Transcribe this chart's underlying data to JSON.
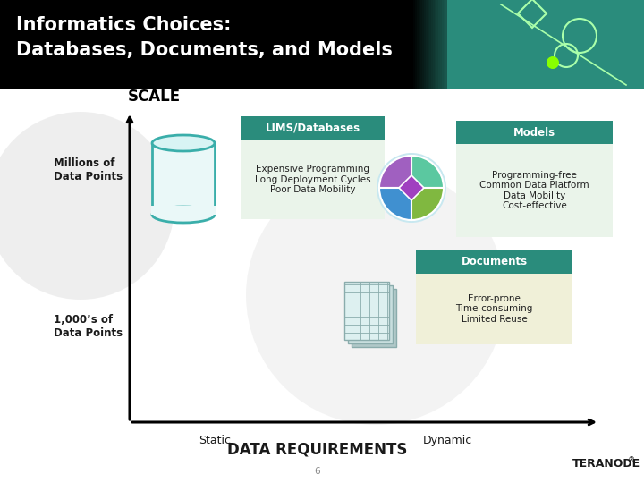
{
  "title_line1": "Informatics Choices:",
  "title_line2": "Databases, Documents, and Models",
  "scale_label": "SCALE",
  "y_label_top": "Millions of\nData Points",
  "y_label_bottom": "1,000’s of\nData Points",
  "x_label_left": "Static",
  "x_label_right": "Dynamic",
  "bottom_label": "DATA REQUIREMENTS",
  "lims_title": "LIMS/Databases",
  "lims_text": "Expensive Programming\nLong Deployment Cycles\nPoor Data Mobility",
  "models_title": "Models",
  "models_text": "Programming-free\nCommon Data Platform\nData Mobility\nCost-effective",
  "docs_title": "Documents",
  "docs_text": "Error-prone\nTime-consuming\nLimited Reuse",
  "page_num": "6",
  "teranode_text": "TERANODE",
  "header_black": "#000000",
  "header_teal": "#2a8c7c",
  "box_title_bg": "#2a8c7c",
  "lims_body_bg": "#eaf4ea",
  "models_body_bg": "#eaf4ea",
  "docs_body_bg": "#f0f0d8",
  "main_bg": "#ffffff",
  "cyl_fill": "#eaf8f8",
  "cyl_edge": "#3aaeaa",
  "axis_color": "#000000",
  "text_dark": "#1a1a1a",
  "text_gray": "#555555",
  "box_text_color": "#222222",
  "shapes_color": "#aaffaa",
  "pie_colors": [
    "#5bc8a0",
    "#a060c0",
    "#4090d0",
    "#80b840"
  ],
  "pie_center_color": "#a040c0",
  "watermark_color": "#e8e8e8"
}
